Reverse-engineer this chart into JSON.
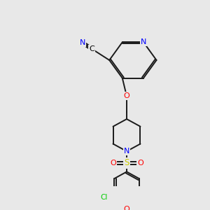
{
  "background_color": "#e8e8e8",
  "bond_color": "#1a1a1a",
  "atom_colors": {
    "N": "#0000ff",
    "O": "#ff0000",
    "S": "#cccc00",
    "Cl": "#00cc00",
    "C": "#000000"
  },
  "font_size": 7.5,
  "line_width": 1.4
}
